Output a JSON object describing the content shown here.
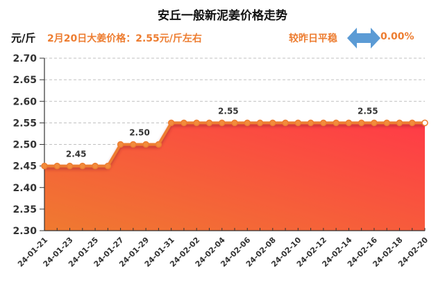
{
  "header": {
    "title": "安丘一般新泥姜价格走势",
    "unit": "元/斤",
    "price_info": "2月20日大姜价格：2.55元/斤左右",
    "compare_label": "较昨日平稳",
    "compare_icon": "double-arrow-icon",
    "change_pct": "0.00%"
  },
  "colors": {
    "line": "#ed7d31",
    "fill_top": "#ff3b47",
    "fill_bottom": "#ef7a30",
    "accent_text": "#ed7d31",
    "arrow": "#5b9bd5"
  },
  "chart_data": {
    "type": "area",
    "title": "安丘一般新泥姜价格走势",
    "xlabel": "",
    "ylabel": "元/斤",
    "ylim": [
      2.3,
      2.7
    ],
    "yticks": [
      "2.30",
      "2.35",
      "2.40",
      "2.45",
      "2.50",
      "2.55",
      "2.60",
      "2.65",
      "2.70"
    ],
    "grid": "horizontal dashed",
    "x": [
      "24-01-21",
      "24-01-22",
      "24-01-23",
      "24-01-24",
      "24-01-25",
      "24-01-26",
      "24-01-27",
      "24-01-28",
      "24-01-29",
      "24-01-30",
      "24-01-31",
      "24-02-01",
      "24-02-02",
      "24-02-03",
      "24-02-04",
      "24-02-05",
      "24-02-06",
      "24-02-07",
      "24-02-08",
      "24-02-09",
      "24-02-10",
      "24-02-11",
      "24-02-12",
      "24-02-13",
      "24-02-14",
      "24-02-15",
      "24-02-16",
      "24-02-17",
      "24-02-18",
      "24-02-19",
      "24-02-20"
    ],
    "xtick_labels": [
      "24-01-21",
      "24-01-23",
      "24-01-25",
      "24-01-27",
      "24-01-29",
      "24-01-31",
      "24-02-02",
      "24-02-04",
      "24-02-06",
      "24-02-08",
      "24-02-10",
      "24-02-12",
      "24-02-14",
      "24-02-16",
      "24-02-18",
      "24-02-20"
    ],
    "values": [
      2.45,
      2.45,
      2.45,
      2.45,
      2.45,
      2.45,
      2.5,
      2.5,
      2.5,
      2.5,
      2.55,
      2.55,
      2.55,
      2.55,
      2.55,
      2.55,
      2.55,
      2.55,
      2.55,
      2.55,
      2.55,
      2.55,
      2.55,
      2.55,
      2.55,
      2.55,
      2.55,
      2.55,
      2.55,
      2.55,
      2.55
    ],
    "annotations": [
      {
        "index": 2.5,
        "value": 2.45,
        "text": "2.45"
      },
      {
        "index": 7.5,
        "value": 2.5,
        "text": "2.50"
      },
      {
        "index": 14.5,
        "value": 2.55,
        "text": "2.55"
      },
      {
        "index": 25.5,
        "value": 2.55,
        "text": "2.55"
      }
    ]
  }
}
